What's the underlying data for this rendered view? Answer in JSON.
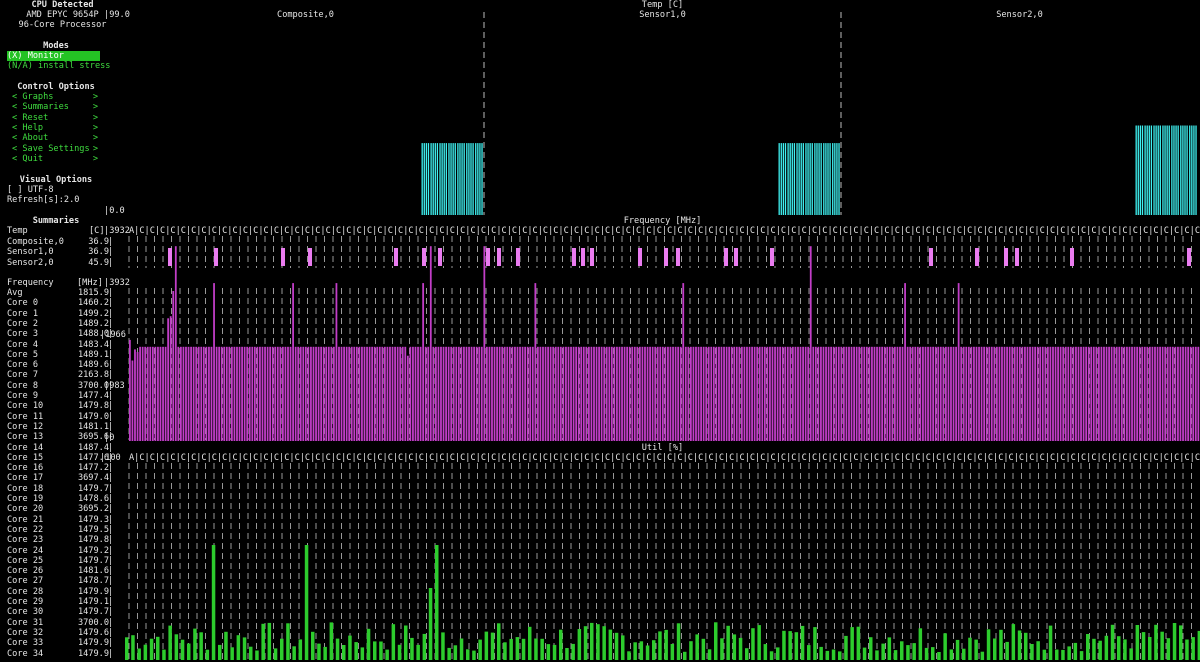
{
  "sidebar": {
    "cpu_header": "CPU Detected",
    "cpu_line1": "AMD EPYC 9654P",
    "cpu_line2": "96-Core Processor",
    "modes_header": "Modes",
    "modes": [
      {
        "label": "(X) Monitor",
        "selected": true
      },
      {
        "label": "(N/A) install stress",
        "selected": false
      }
    ],
    "control_header": "Control Options",
    "controls": [
      {
        "left": "<",
        "label": "Graphs",
        "right": ">"
      },
      {
        "left": "<",
        "label": "Summaries",
        "right": ">"
      },
      {
        "left": "<",
        "label": "Reset",
        "right": ">"
      },
      {
        "left": "<",
        "label": "Help",
        "right": ">"
      },
      {
        "left": "<",
        "label": "About",
        "right": ">"
      },
      {
        "left": "<",
        "label": "Save Settings",
        "right": ">"
      },
      {
        "left": "<",
        "label": "Quit",
        "right": ">"
      }
    ],
    "visual_header": "Visual Options",
    "utf8": "[ ] UTF-8",
    "refresh": "Refresh[s]:2.0",
    "summaries_header": "Summaries"
  },
  "summary_table": {
    "temp": {
      "label": "Temp",
      "unit": "[C]",
      "rows": [
        {
          "name": "Composite,0",
          "value": "36.9"
        },
        {
          "name": "Sensor1,0",
          "value": "36.9"
        },
        {
          "name": "Sensor2,0",
          "value": "45.9"
        }
      ]
    },
    "freq": {
      "label": "Frequency",
      "unit": "[MHz]",
      "rows": [
        {
          "name": "Avg",
          "value": "1815.9"
        },
        {
          "name": "Core 0",
          "value": "1460.2"
        },
        {
          "name": "Core 1",
          "value": "1499.2"
        },
        {
          "name": "Core 2",
          "value": "1489.2"
        },
        {
          "name": "Core 3",
          "value": "1488.0"
        },
        {
          "name": "Core 4",
          "value": "1483.4"
        },
        {
          "name": "Core 5",
          "value": "1489.1"
        },
        {
          "name": "Core 6",
          "value": "1489.6"
        },
        {
          "name": "Core 7",
          "value": "2163.8"
        },
        {
          "name": "Core 8",
          "value": "3700.0"
        },
        {
          "name": "Core 9",
          "value": "1477.4"
        },
        {
          "name": "Core 10",
          "value": "1479.8"
        },
        {
          "name": "Core 11",
          "value": "1479.0"
        },
        {
          "name": "Core 12",
          "value": "1481.1"
        },
        {
          "name": "Core 13",
          "value": "3695.6"
        },
        {
          "name": "Core 14",
          "value": "1487.4"
        },
        {
          "name": "Core 15",
          "value": "1477.6"
        },
        {
          "name": "Core 16",
          "value": "1477.2"
        },
        {
          "name": "Core 17",
          "value": "3697.4"
        },
        {
          "name": "Core 18",
          "value": "1479.7"
        },
        {
          "name": "Core 19",
          "value": "1478.6"
        },
        {
          "name": "Core 20",
          "value": "3695.2"
        },
        {
          "name": "Core 21",
          "value": "1479.3"
        },
        {
          "name": "Core 22",
          "value": "1479.5"
        },
        {
          "name": "Core 23",
          "value": "1479.8"
        },
        {
          "name": "Core 24",
          "value": "1479.2"
        },
        {
          "name": "Core 25",
          "value": "1479.7"
        },
        {
          "name": "Core 26",
          "value": "1481.6"
        },
        {
          "name": "Core 27",
          "value": "1478.7"
        },
        {
          "name": "Core 28",
          "value": "1479.9"
        },
        {
          "name": "Core 29",
          "value": "1479.1"
        },
        {
          "name": "Core 30",
          "value": "1479.7"
        },
        {
          "name": "Core 31",
          "value": "3700.0"
        },
        {
          "name": "Core 32",
          "value": "1479.6"
        },
        {
          "name": "Core 33",
          "value": "1479.9"
        },
        {
          "name": "Core 34",
          "value": "1479.9"
        }
      ]
    }
  },
  "colors": {
    "temp": "#3ff2f2",
    "freq": "#c23ec8",
    "temp_sensor": "#ea7cf0",
    "util": "#2dcc2d",
    "accent": "#24c324"
  },
  "chart_data": [
    {
      "type": "bar",
      "title": "Temp [C]",
      "ytop": "99.0",
      "ybottom": "0.0",
      "ylim": [
        0,
        99
      ],
      "series": [
        {
          "name": "Composite,0",
          "values": [
            0,
            0,
            0,
            0,
            0,
            0,
            0,
            0,
            0,
            0,
            0,
            0,
            0,
            0,
            0,
            0,
            0,
            0,
            0,
            0,
            0,
            0,
            0,
            0,
            0,
            0,
            0,
            0,
            0,
            0,
            0,
            0,
            0,
            36.9,
            36.9,
            36.9,
            36.9,
            36.9,
            36.9,
            36.9
          ]
        },
        {
          "name": "Sensor1,0",
          "values": [
            0,
            0,
            0,
            0,
            0,
            0,
            0,
            0,
            0,
            0,
            0,
            0,
            0,
            0,
            0,
            0,
            0,
            0,
            0,
            0,
            0,
            0,
            0,
            0,
            0,
            0,
            0,
            0,
            0,
            0,
            0,
            0,
            0,
            36.9,
            36.9,
            36.9,
            36.9,
            36.9,
            36.9,
            36.9
          ]
        },
        {
          "name": "Sensor2,0",
          "values": [
            0,
            0,
            0,
            0,
            0,
            0,
            0,
            0,
            0,
            0,
            0,
            0,
            0,
            0,
            0,
            0,
            0,
            0,
            0,
            0,
            0,
            0,
            0,
            0,
            0,
            0,
            0,
            0,
            0,
            0,
            0,
            0,
            0,
            45.9,
            45.9,
            45.9,
            45.9,
            45.9,
            45.9,
            45.9
          ]
        }
      ]
    },
    {
      "type": "bar",
      "title": "Frequency [MHz]",
      "ytop": "3932",
      "ymid": "1966",
      "ylow": "983",
      "ybottom": "0",
      "ylim": [
        0,
        3932
      ],
      "values": [
        1920,
        1530,
        1740,
        1690,
        1790,
        1790,
        1790,
        1790,
        1790,
        1790,
        1790,
        1790,
        1790,
        1790,
        1790,
        2330,
        2370,
        2850,
        3700,
        1790,
        1790,
        1790,
        1790,
        1790,
        1790,
        1790,
        1790,
        1790,
        1790,
        1790,
        1790,
        1790,
        1790,
        3000,
        1790,
        1790,
        1790,
        1790,
        1790,
        1790,
        1790,
        1790,
        1790,
        1790,
        1790,
        1790,
        1790,
        1790,
        1790,
        1790,
        1790,
        1790,
        1790,
        1790,
        1790,
        1790,
        1790,
        1790,
        1790,
        1790,
        1790,
        1790,
        1790,
        1790,
        3000,
        1790,
        1790,
        1790,
        1790,
        1790,
        1790,
        1790,
        1790,
        1790,
        1790,
        1790,
        1790,
        1790,
        1790,
        1790,
        1790,
        3000,
        1790,
        1790,
        1790,
        1790,
        1790,
        1790,
        1790,
        1790,
        1790,
        1790,
        1790,
        1790,
        1790,
        1790,
        1790,
        1790,
        1790,
        1790,
        1790,
        1790,
        1790,
        1790,
        1790,
        1790,
        1790,
        1790,
        1790,
        1620,
        1790,
        1790,
        1790,
        1790,
        1790,
        3000,
        1790,
        1790,
        3700,
        1790,
        1790,
        1790,
        1790,
        1790,
        1790,
        1790,
        1790,
        1790,
        1790,
        1790,
        1790,
        1790,
        1790,
        1790,
        1790,
        1790,
        1790,
        1790,
        1790,
        3700,
        1790,
        1790,
        1790,
        1790,
        1790,
        1790,
        1790,
        1790,
        1790,
        1790,
        1790,
        1790,
        1790,
        1790,
        1790,
        1790,
        1790,
        1790,
        1790,
        3000,
        1790,
        1790,
        1790,
        1790,
        1790,
        1790,
        1790,
        1790,
        1790,
        1790,
        1790,
        1790,
        1790,
        1790,
        1790,
        1790,
        1790,
        1790,
        1790,
        1790,
        1790,
        1790,
        1790,
        1790,
        1790,
        1790,
        1790,
        1790,
        1790,
        1790,
        1790,
        1790,
        1790,
        1790,
        1790,
        1790,
        1790,
        1790,
        1790,
        1790,
        1790,
        1790,
        1790,
        1790,
        1790,
        1790,
        1790,
        1790,
        1790,
        1790,
        1790,
        1790,
        1790,
        1790,
        1790,
        1790,
        1790,
        3000,
        1790,
        1790,
        1790,
        1790,
        1790,
        1790,
        1790,
        1790,
        1790,
        1790,
        1790,
        1790,
        1790,
        1790,
        1790,
        1790,
        1790,
        1790,
        1790,
        1790,
        1790,
        1790,
        1790,
        1790,
        1790,
        1790,
        1790,
        1790,
        1790,
        1790,
        1790,
        1790,
        1790,
        1790,
        1790,
        1790,
        1790,
        1790,
        1790,
        1790,
        1790,
        1790,
        1790,
        1790,
        1790,
        1790,
        1790,
        1790,
        1790,
        3700,
        1790,
        1790,
        1790,
        1790,
        1790,
        1790,
        1790,
        1790,
        1790,
        1790,
        1790,
        1790,
        1790,
        1790,
        1790,
        1790,
        1790,
        1790,
        1790,
        1790,
        1790,
        1790,
        1790,
        1790,
        1790,
        1790,
        1790,
        1790,
        1790,
        1790,
        1790,
        1790,
        1790,
        1790,
        1790,
        1790,
        3000,
        1790,
        1790,
        1790,
        1790,
        1790,
        1790,
        1790,
        1790,
        1790,
        1790,
        1790,
        1790,
        1790,
        1790,
        1790,
        1790,
        1790,
        1790,
        1790,
        1790,
        3000,
        1790,
        1790,
        1790,
        1790,
        1790,
        1790,
        1790,
        1790,
        1790,
        1790,
        1790,
        1790,
        1790,
        1790,
        1790,
        1790,
        1790,
        1790,
        1790,
        1790,
        1790,
        1790,
        1790,
        1790,
        1790,
        1790,
        1790,
        1790,
        1790,
        1790,
        1790,
        1790,
        1790,
        1790,
        1790,
        1790,
        1790,
        1790,
        1790,
        1790,
        1790,
        1790,
        1790,
        1790,
        1790,
        1790,
        1790,
        1790,
        1790,
        1790,
        1790,
        1790,
        1790,
        1790,
        1790,
        1790,
        1790,
        1790,
        1790,
        1790,
        1790,
        1790,
        1790,
        1790,
        1790,
        1790,
        1790,
        1790,
        1790,
        1790,
        1790,
        1790,
        1790,
        1790,
        1790,
        1790,
        1790,
        1790,
        1790,
        1790,
        1790,
        1790,
        1790,
        1790,
        1790,
        1790,
        1790,
        1790,
        1790,
        1790,
        1790,
        1790,
        1790,
        1790
      ]
    },
    {
      "type": "bar",
      "title": "Util [%]",
      "ytop": "100",
      "ylim": [
        0,
        100
      ],
      "values": []
    }
  ]
}
